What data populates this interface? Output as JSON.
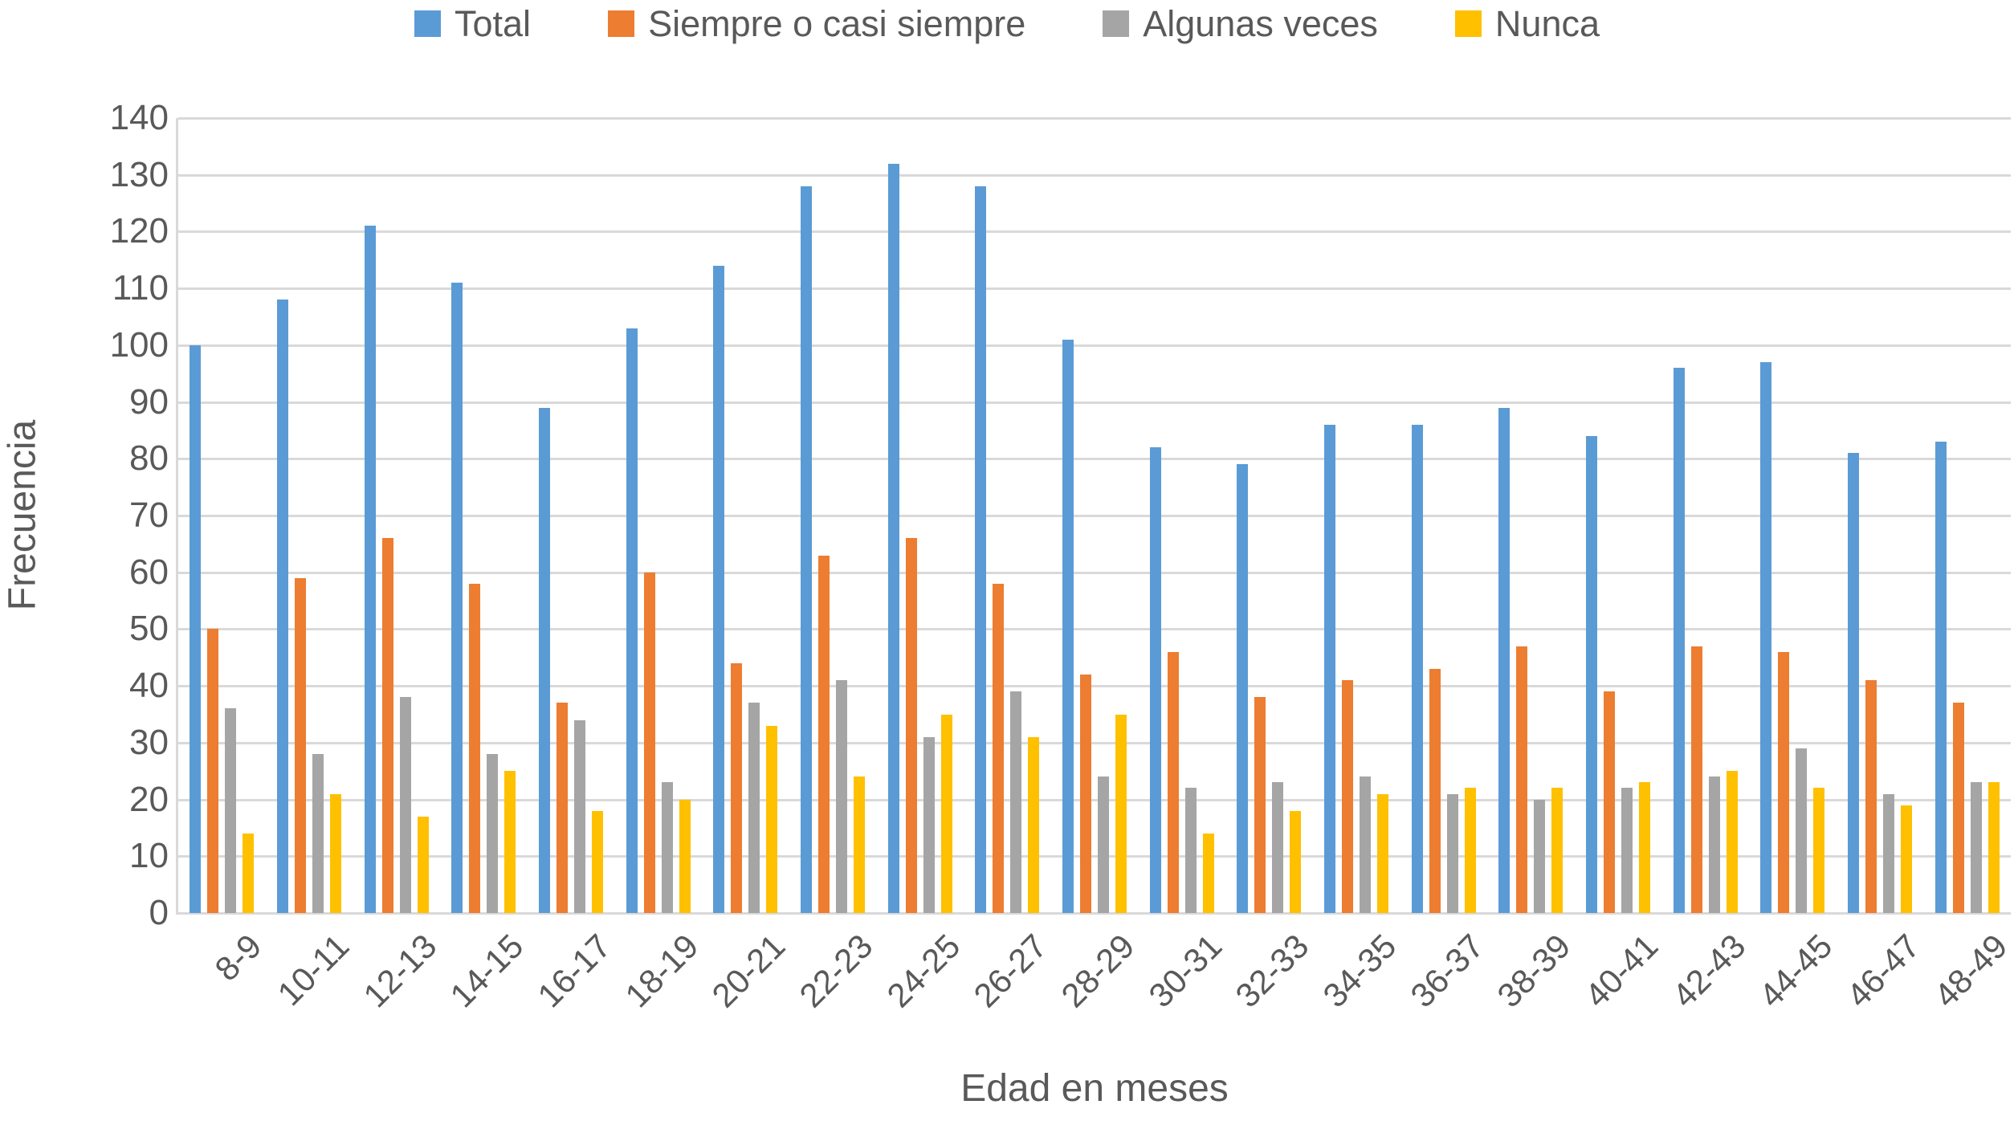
{
  "chart_data": {
    "type": "bar",
    "title": "",
    "categories": [
      "8-9",
      "10-11",
      "12-13",
      "14-15",
      "16-17",
      "18-19",
      "20-21",
      "22-23",
      "24-25",
      "26-27",
      "28-29",
      "30-31",
      "32-33",
      "34-35",
      "36-37",
      "38-39",
      "40-41",
      "42-43",
      "44-45",
      "46-47",
      "48-49"
    ],
    "series": [
      {
        "name": "Total",
        "color": "#5B9BD5",
        "values": [
          100,
          108,
          121,
          111,
          89,
          103,
          114,
          128,
          132,
          128,
          101,
          82,
          79,
          86,
          86,
          89,
          84,
          96,
          97,
          81,
          83
        ]
      },
      {
        "name": "Siempre o casi siempre",
        "color": "#ED7D31",
        "values": [
          50,
          59,
          66,
          58,
          37,
          60,
          44,
          63,
          66,
          58,
          42,
          46,
          38,
          41,
          43,
          47,
          39,
          47,
          46,
          41,
          37
        ]
      },
      {
        "name": "Algunas veces",
        "color": "#A5A5A5",
        "values": [
          36,
          28,
          38,
          28,
          34,
          23,
          37,
          41,
          31,
          39,
          24,
          22,
          23,
          24,
          21,
          20,
          22,
          24,
          29,
          21,
          23
        ]
      },
      {
        "name": "Nunca",
        "color": "#FFC000",
        "values": [
          14,
          21,
          17,
          25,
          18,
          20,
          33,
          24,
          35,
          31,
          35,
          14,
          18,
          21,
          22,
          22,
          23,
          25,
          22,
          19,
          23
        ]
      }
    ],
    "xlabel": "Edad en meses",
    "ylabel": "Frecuencia",
    "ylim": [
      0,
      140
    ],
    "ytick_step": 10,
    "yticks": [
      0,
      10,
      20,
      30,
      40,
      50,
      60,
      70,
      80,
      90,
      100,
      110,
      120,
      130,
      140
    ],
    "legend_position": "top",
    "legend_labels": [
      "Total",
      "Siempre o casi siempre",
      "Algunas veces",
      "Nunca"
    ],
    "grid": "horizontal"
  },
  "colors": {
    "gridline": "#D9D9D9",
    "axis_text": "#595959",
    "background": "#FFFFFF"
  }
}
